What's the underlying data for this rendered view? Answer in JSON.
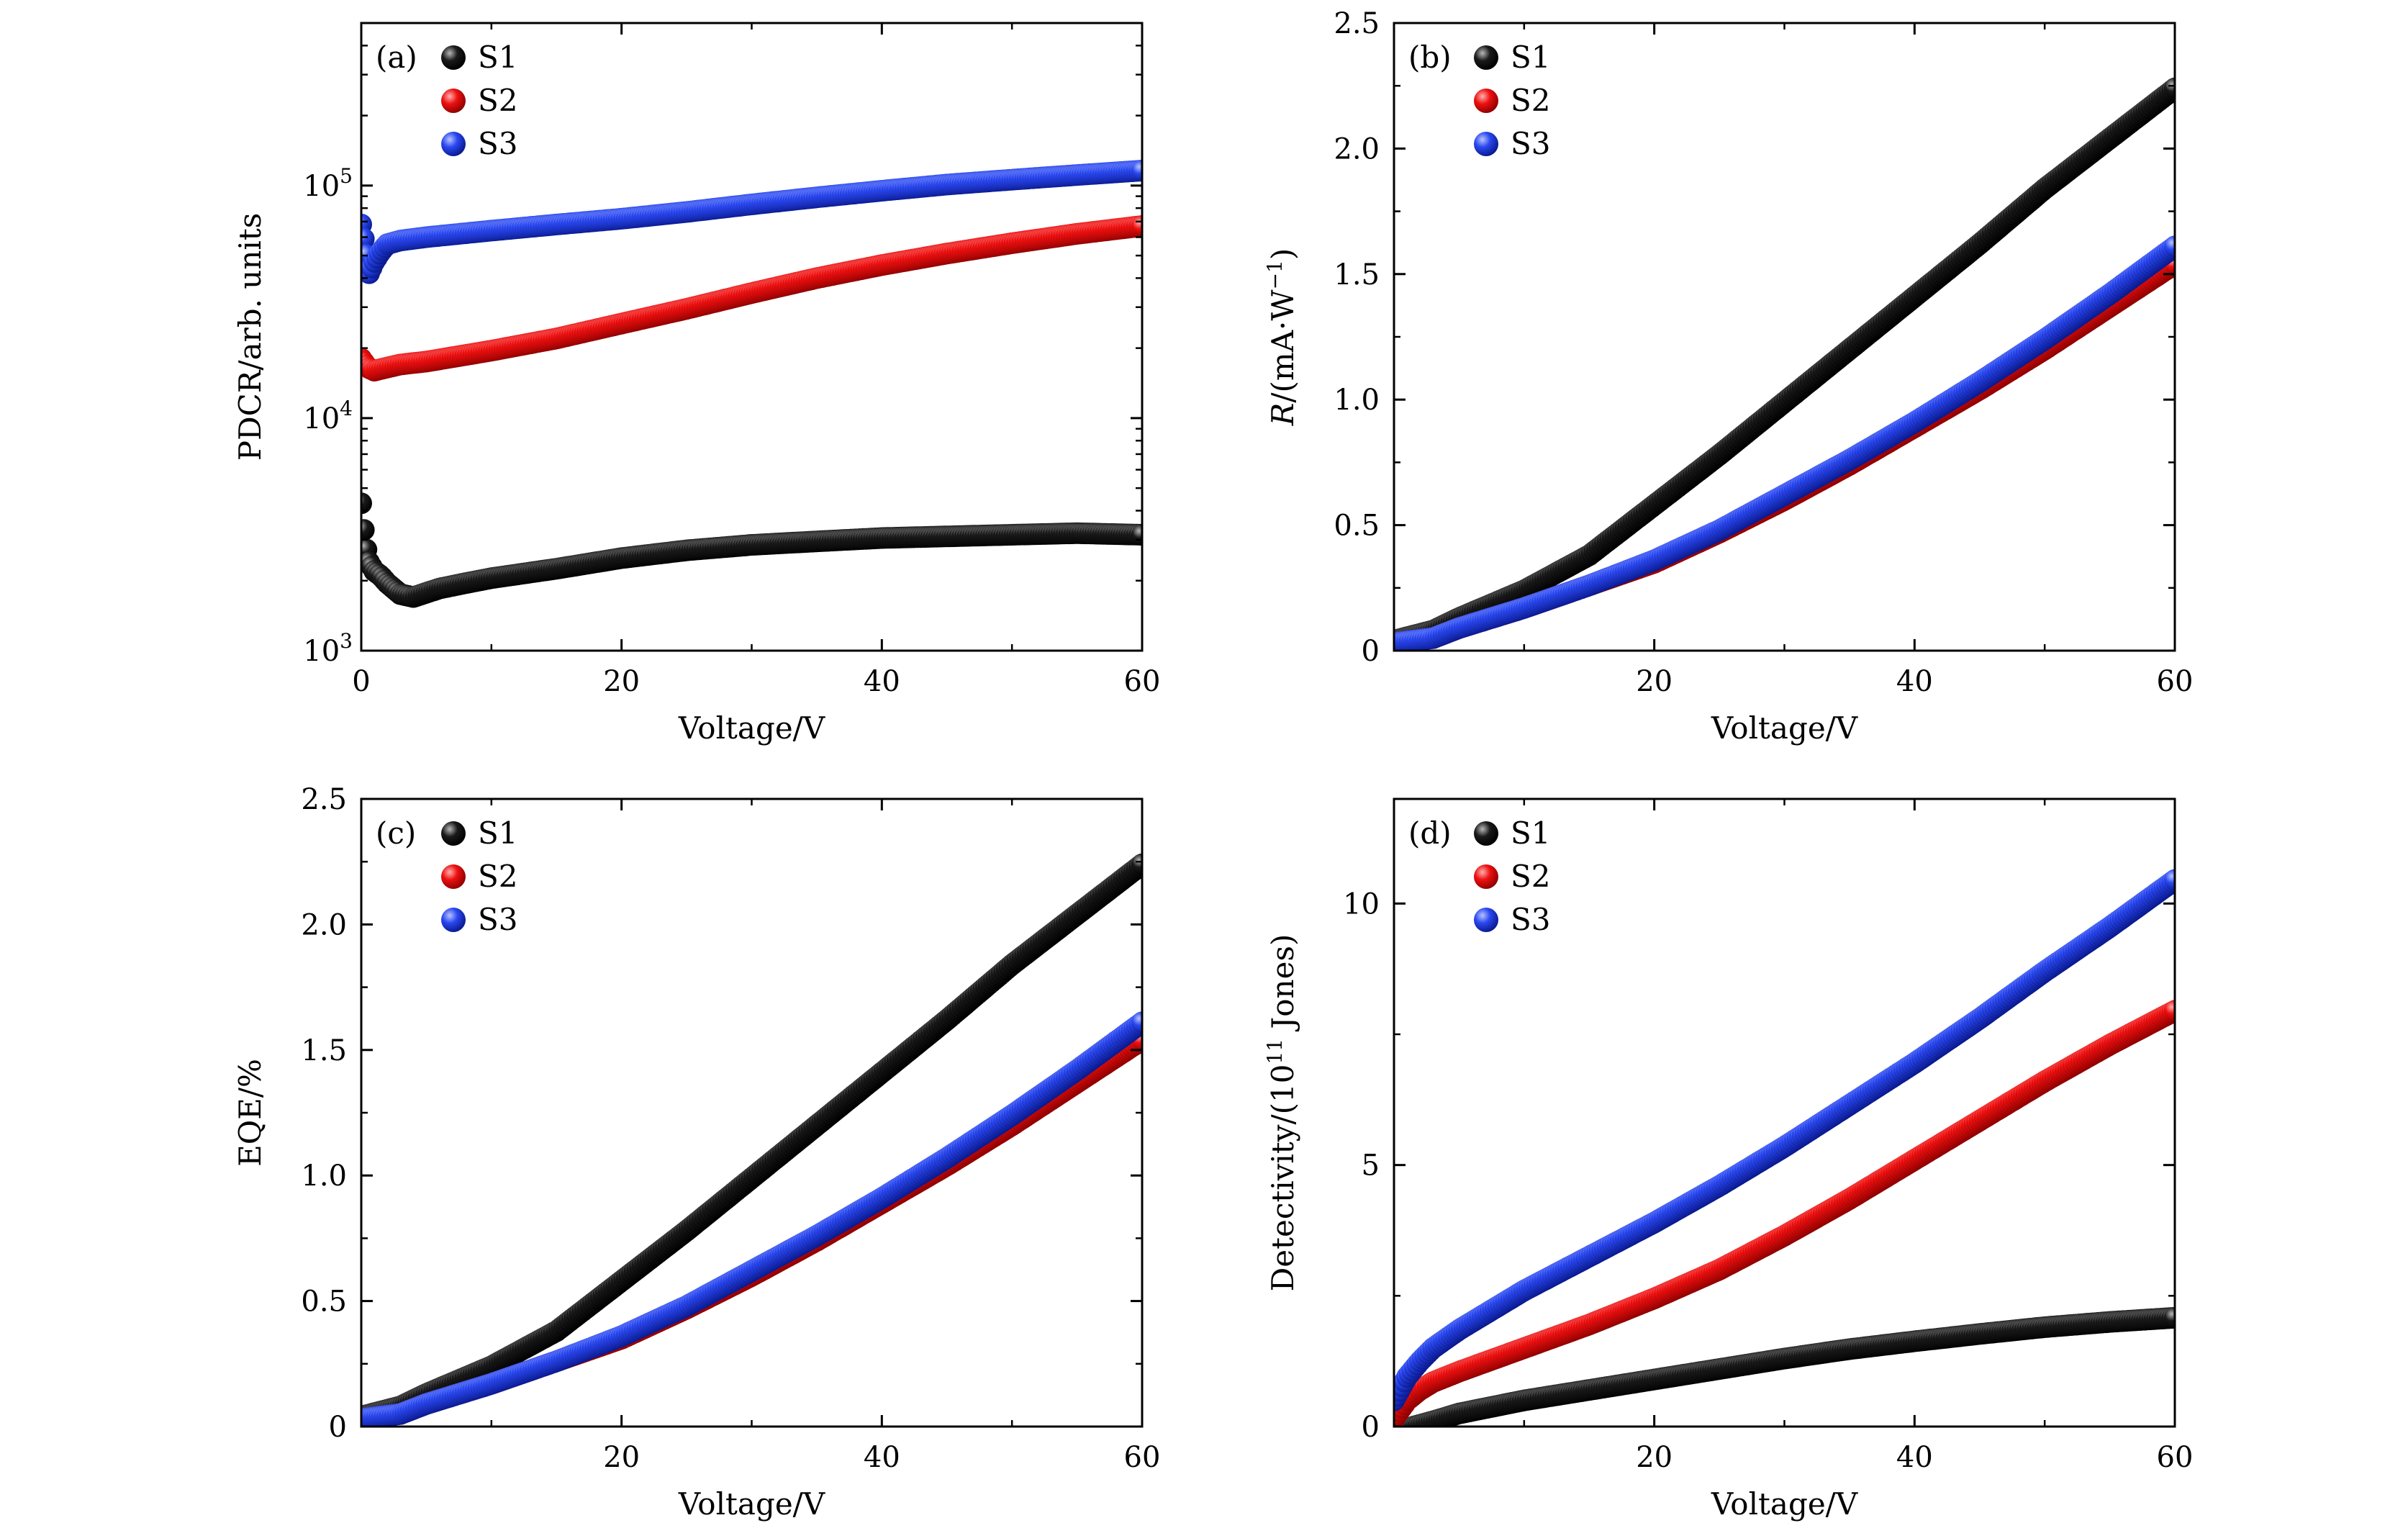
{
  "figure": {
    "panels": [
      "a",
      "b",
      "c",
      "d"
    ]
  },
  "chart_data": [
    {
      "id": "a",
      "type": "scatter",
      "panel_label": "(a)",
      "xlabel": "Voltage/V",
      "ylabel": "PDCR/arb. units",
      "xlim": [
        0,
        60
      ],
      "ylim": [
        1000,
        500000
      ],
      "yscale": "log",
      "x_ticks": [
        0,
        20,
        40,
        60
      ],
      "x_tick_labels": [
        "0",
        "20",
        "40",
        "60"
      ],
      "y_ticks": [
        1000,
        10000,
        100000
      ],
      "y_tick_labels": [
        {
          "base": "10",
          "exp": "3"
        },
        {
          "base": "10",
          "exp": "4"
        },
        {
          "base": "10",
          "exp": "5"
        }
      ],
      "legend": "top-left",
      "series": [
        {
          "name": "S1",
          "color": "#111111",
          "x": [
            0,
            0.3,
            0.6,
            1,
            1.5,
            2,
            3,
            4,
            6,
            8,
            10,
            15,
            20,
            25,
            30,
            35,
            40,
            45,
            50,
            55,
            60
          ],
          "y": [
            4300,
            2900,
            2400,
            2200,
            2100,
            1950,
            1750,
            1700,
            1850,
            1950,
            2050,
            2250,
            2500,
            2700,
            2850,
            2950,
            3050,
            3100,
            3150,
            3200,
            3150
          ]
        },
        {
          "name": "S2",
          "color": "#ee1111",
          "x": [
            0,
            0.5,
            1,
            2,
            3,
            5,
            10,
            15,
            20,
            25,
            30,
            35,
            40,
            45,
            50,
            55,
            60
          ],
          "y": [
            18000,
            16500,
            16000,
            16500,
            17000,
            17500,
            19500,
            22000,
            25500,
            29500,
            34500,
            40000,
            45500,
            51000,
            56500,
            62000,
            67000
          ]
        },
        {
          "name": "S3",
          "color": "#2244ee",
          "x": [
            0,
            0.3,
            0.6,
            1,
            1.5,
            2,
            3,
            5,
            10,
            15,
            20,
            25,
            30,
            35,
            40,
            45,
            50,
            55,
            60
          ],
          "y": [
            68000,
            55000,
            42000,
            47000,
            52000,
            56000,
            58000,
            60000,
            64000,
            68000,
            72000,
            77000,
            83000,
            89000,
            95000,
            101000,
            106000,
            111000,
            116000
          ]
        }
      ]
    },
    {
      "id": "b",
      "type": "scatter",
      "panel_label": "(b)",
      "xlabel": "Voltage/V",
      "ylabel_parts": {
        "sym": "R",
        "rest": "/(mA·W",
        "sup": "−1",
        "close": ")"
      },
      "xlim": [
        0,
        60
      ],
      "ylim": [
        0,
        2.5
      ],
      "x_ticks": [
        20,
        40,
        60
      ],
      "x_tick_labels": [
        "20",
        "40",
        "60"
      ],
      "y_ticks": [
        0,
        0.5,
        1.0,
        1.5,
        2.0,
        2.5
      ],
      "y_tick_labels": [
        "0",
        "0.5",
        "1.0",
        "1.5",
        "2.0",
        "2.5"
      ],
      "legend": "top-left",
      "series": [
        {
          "name": "S1",
          "color": "#111111",
          "x": [
            0,
            3,
            5,
            10,
            15,
            20,
            25,
            30,
            35,
            40,
            45,
            50,
            55,
            60
          ],
          "y": [
            0.04,
            0.08,
            0.13,
            0.24,
            0.38,
            0.58,
            0.78,
            0.99,
            1.2,
            1.41,
            1.62,
            1.84,
            2.04,
            2.24
          ]
        },
        {
          "name": "S2",
          "color": "#ee1111",
          "x": [
            0,
            3,
            5,
            10,
            15,
            20,
            25,
            30,
            35,
            40,
            45,
            50,
            55,
            60
          ],
          "y": [
            0.03,
            0.05,
            0.09,
            0.17,
            0.26,
            0.35,
            0.47,
            0.6,
            0.74,
            0.89,
            1.04,
            1.2,
            1.37,
            1.54
          ]
        },
        {
          "name": "S3",
          "color": "#2244ee",
          "x": [
            0,
            3,
            5,
            10,
            15,
            20,
            25,
            30,
            35,
            40,
            45,
            50,
            55,
            60
          ],
          "y": [
            0.03,
            0.05,
            0.09,
            0.17,
            0.26,
            0.36,
            0.48,
            0.62,
            0.76,
            0.91,
            1.07,
            1.24,
            1.42,
            1.61
          ]
        }
      ]
    },
    {
      "id": "c",
      "type": "scatter",
      "panel_label": "(c)",
      "xlabel": "Voltage/V",
      "ylabel": "EQE/%",
      "xlim": [
        0,
        60
      ],
      "ylim": [
        0,
        2.5
      ],
      "x_ticks": [
        20,
        40,
        60
      ],
      "x_tick_labels": [
        "20",
        "40",
        "60"
      ],
      "y_ticks": [
        0,
        0.5,
        1.0,
        1.5,
        2.0,
        2.5
      ],
      "y_tick_labels": [
        "0",
        "0.5",
        "1.0",
        "1.5",
        "2.0",
        "2.5"
      ],
      "legend": "top-left",
      "series": [
        {
          "name": "S1",
          "color": "#111111",
          "x": [
            0,
            3,
            5,
            10,
            15,
            20,
            25,
            30,
            35,
            40,
            45,
            50,
            55,
            60
          ],
          "y": [
            0.04,
            0.08,
            0.13,
            0.24,
            0.38,
            0.58,
            0.78,
            0.99,
            1.2,
            1.41,
            1.62,
            1.84,
            2.04,
            2.24
          ]
        },
        {
          "name": "S2",
          "color": "#ee1111",
          "x": [
            0,
            3,
            5,
            10,
            15,
            20,
            25,
            30,
            35,
            40,
            45,
            50,
            55,
            60
          ],
          "y": [
            0.03,
            0.05,
            0.09,
            0.17,
            0.26,
            0.35,
            0.47,
            0.6,
            0.74,
            0.89,
            1.04,
            1.2,
            1.37,
            1.54
          ]
        },
        {
          "name": "S3",
          "color": "#2244ee",
          "x": [
            0,
            3,
            5,
            10,
            15,
            20,
            25,
            30,
            35,
            40,
            45,
            50,
            55,
            60
          ],
          "y": [
            0.03,
            0.05,
            0.09,
            0.17,
            0.26,
            0.36,
            0.48,
            0.62,
            0.76,
            0.91,
            1.07,
            1.24,
            1.42,
            1.61
          ]
        }
      ]
    },
    {
      "id": "d",
      "type": "scatter",
      "panel_label": "(d)",
      "xlabel": "Voltage/V",
      "ylabel_parts": {
        "sym": "",
        "rest": "Detectivity/(10",
        "sup": "11",
        "close": " Jones)"
      },
      "xlim": [
        0,
        60
      ],
      "ylim": [
        0,
        12
      ],
      "x_ticks": [
        20,
        40,
        60
      ],
      "x_tick_labels": [
        "20",
        "40",
        "60"
      ],
      "y_ticks": [
        0,
        5,
        10
      ],
      "y_tick_labels": [
        "0",
        "5",
        "10"
      ],
      "legend": "top-left",
      "series": [
        {
          "name": "S1",
          "color": "#111111",
          "x": [
            1.5,
            3,
            5,
            10,
            15,
            20,
            25,
            30,
            35,
            40,
            45,
            50,
            55,
            60
          ],
          "y": [
            0.0,
            0.1,
            0.25,
            0.5,
            0.7,
            0.9,
            1.1,
            1.3,
            1.48,
            1.63,
            1.77,
            1.9,
            2.0,
            2.08
          ]
        },
        {
          "name": "S2",
          "color": "#ee1111",
          "x": [
            0,
            1,
            2,
            3,
            5,
            10,
            15,
            20,
            25,
            30,
            35,
            40,
            45,
            50,
            55,
            60
          ],
          "y": [
            0.15,
            0.5,
            0.7,
            0.85,
            1.05,
            1.5,
            1.95,
            2.45,
            3.0,
            3.65,
            4.35,
            5.1,
            5.85,
            6.6,
            7.3,
            7.95
          ]
        },
        {
          "name": "S3",
          "color": "#2244ee",
          "x": [
            0,
            1,
            2,
            3,
            5,
            10,
            15,
            20,
            25,
            30,
            35,
            40,
            45,
            50,
            55,
            60
          ],
          "y": [
            0.5,
            0.95,
            1.25,
            1.5,
            1.85,
            2.6,
            3.25,
            3.9,
            4.6,
            5.35,
            6.15,
            6.95,
            7.8,
            8.7,
            9.55,
            10.45
          ]
        }
      ]
    }
  ]
}
